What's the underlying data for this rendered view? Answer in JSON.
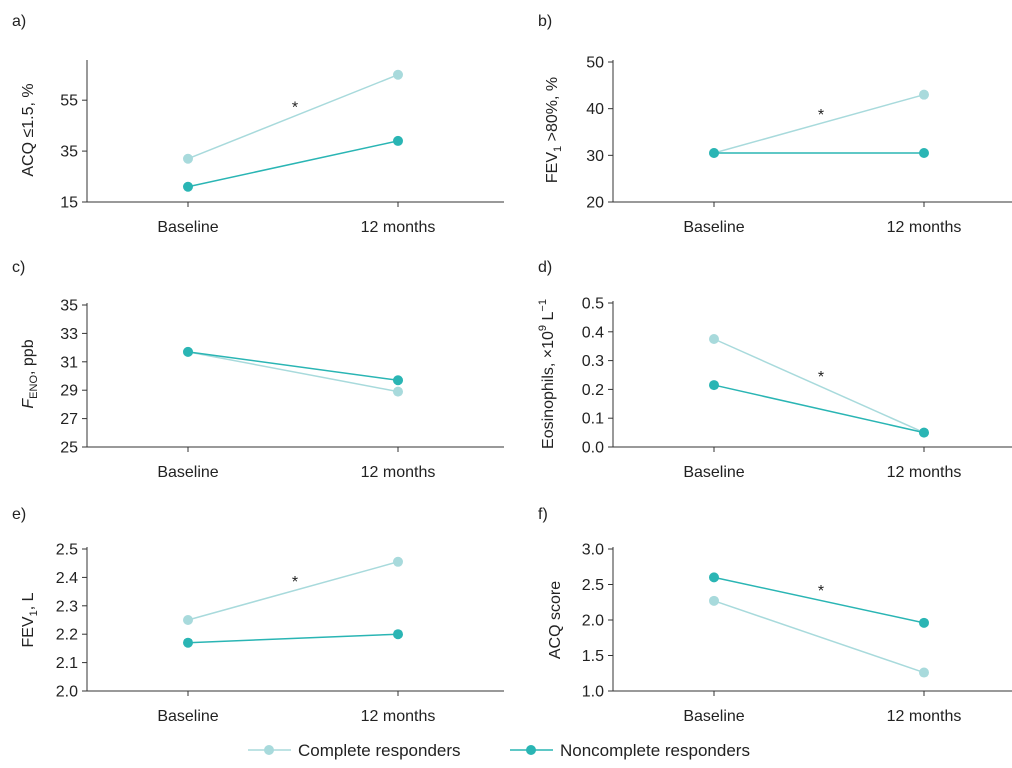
{
  "colors": {
    "complete": "#a8dadc",
    "noncomplete": "#2ab5b4"
  },
  "legend": [
    {
      "key": "complete",
      "label": "Complete responders"
    },
    {
      "key": "noncomplete",
      "label": "Noncomplete responders"
    }
  ],
  "chart_data": [
    {
      "type": "line",
      "panel": "a)",
      "categories": [
        "Baseline",
        "12 months"
      ],
      "ylim": [
        15,
        70
      ],
      "yticks": [
        "15",
        "35",
        "55"
      ],
      "significance": "*",
      "series": [
        {
          "name": "Complete responders",
          "values": [
            32,
            65
          ]
        },
        {
          "name": "Noncomplete responders",
          "values": [
            21,
            39
          ]
        }
      ]
    },
    {
      "type": "line",
      "panel": "b)",
      "categories": [
        "Baseline",
        "12 months"
      ],
      "ylim": [
        20,
        50
      ],
      "yticks": [
        "20",
        "30",
        "40",
        "50"
      ],
      "significance": "*",
      "series": [
        {
          "name": "Complete responders",
          "values": [
            30.5,
            43
          ]
        },
        {
          "name": "Noncomplete responders",
          "values": [
            30.5,
            30.5
          ]
        }
      ]
    },
    {
      "type": "line",
      "panel": "c)",
      "categories": [
        "Baseline",
        "12 months"
      ],
      "ylim": [
        25,
        35
      ],
      "yticks": [
        "25",
        "27",
        "29",
        "31",
        "33",
        "35"
      ],
      "significance": "",
      "series": [
        {
          "name": "Complete responders",
          "values": [
            31.7,
            28.9
          ]
        },
        {
          "name": "Noncomplete responders",
          "values": [
            31.7,
            29.7
          ]
        }
      ]
    },
    {
      "type": "line",
      "panel": "d)",
      "categories": [
        "Baseline",
        "12 months"
      ],
      "ylim": [
        0,
        0.5
      ],
      "yticks": [
        "0.0",
        "0.1",
        "0.2",
        "0.3",
        "0.4",
        "0.5"
      ],
      "significance": "*",
      "series": [
        {
          "name": "Complete responders",
          "values": [
            0.375,
            0.05
          ]
        },
        {
          "name": "Noncomplete responders",
          "values": [
            0.215,
            0.05
          ]
        }
      ]
    },
    {
      "type": "line",
      "panel": "e)",
      "categories": [
        "Baseline",
        "12 months"
      ],
      "ylim": [
        2.0,
        2.5
      ],
      "yticks": [
        "2.0",
        "2.1",
        "2.2",
        "2.3",
        "2.4",
        "2.5"
      ],
      "significance": "*",
      "series": [
        {
          "name": "Complete responders",
          "values": [
            2.25,
            2.455
          ]
        },
        {
          "name": "Noncomplete responders",
          "values": [
            2.17,
            2.2
          ]
        }
      ]
    },
    {
      "type": "line",
      "panel": "f)",
      "categories": [
        "Baseline",
        "12 months"
      ],
      "ylim": [
        1.0,
        3.0
      ],
      "yticks": [
        "1.0",
        "1.5",
        "2.0",
        "2.5",
        "3.0"
      ],
      "significance": "*",
      "series": [
        {
          "name": "Complete responders",
          "values": [
            2.27,
            1.26
          ]
        },
        {
          "name": "Noncomplete responders",
          "values": [
            2.6,
            1.96
          ]
        }
      ]
    }
  ]
}
